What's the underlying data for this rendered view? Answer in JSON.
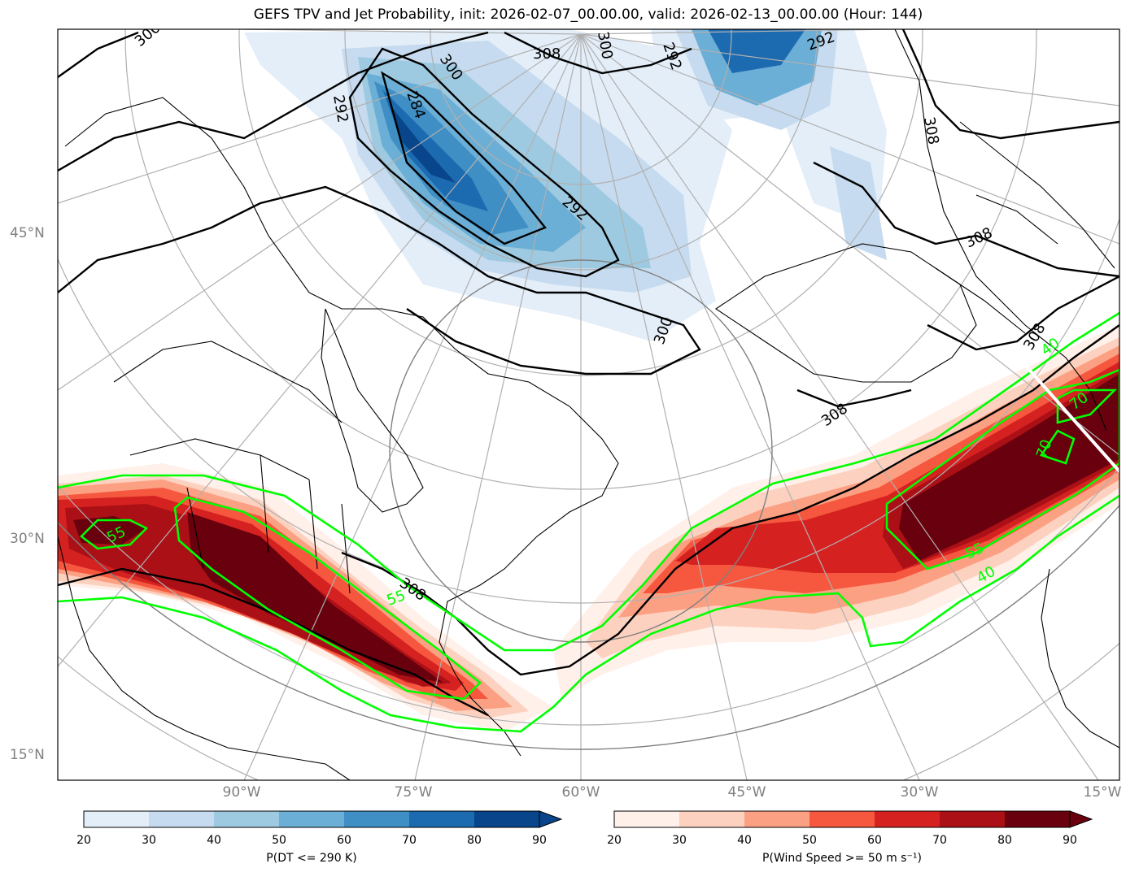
{
  "title": "GEFS TPV and Jet Probability, init: 2026-02-07_00.00.00, valid: 2026-02-13_00.00.00 (Hour: 144)",
  "lat_labels": [
    "45°N",
    "30°N",
    "15°N"
  ],
  "lon_labels": [
    "90°W",
    "75°W",
    "60°W",
    "45°W",
    "30°W",
    "15°W"
  ],
  "colorbars": [
    {
      "label": "P(DT <= 290 K)",
      "ticks": [
        "20",
        "30",
        "40",
        "50",
        "60",
        "70",
        "80",
        "90"
      ],
      "colors": [
        "#e3eef9",
        "#c6dbef",
        "#9ecae1",
        "#6baed6",
        "#3f8fc5",
        "#1c6aaf",
        "#08458a"
      ]
    },
    {
      "label": "P(Wind Speed >= 50 m s⁻¹)",
      "ticks": [
        "20",
        "30",
        "40",
        "50",
        "60",
        "70",
        "80",
        "90"
      ],
      "colors": [
        "#fff0ea",
        "#fdd1bf",
        "#fca083",
        "#f6573f",
        "#d52221",
        "#aa1016",
        "#69000d"
      ]
    }
  ],
  "contour_labels": {
    "theta": [
      "300",
      "308",
      "300",
      "292",
      "292",
      "292",
      "284",
      "292",
      "300",
      "300",
      "308",
      "308",
      "308",
      "308",
      "308"
    ],
    "jet": [
      "55",
      "55",
      "70",
      "70",
      "55",
      "40",
      "40"
    ]
  },
  "colors": {
    "jet_contour": "#00ff00",
    "theta_contour": "#000000",
    "graticule": "#b0b0b0",
    "axis_label": "#808080"
  }
}
